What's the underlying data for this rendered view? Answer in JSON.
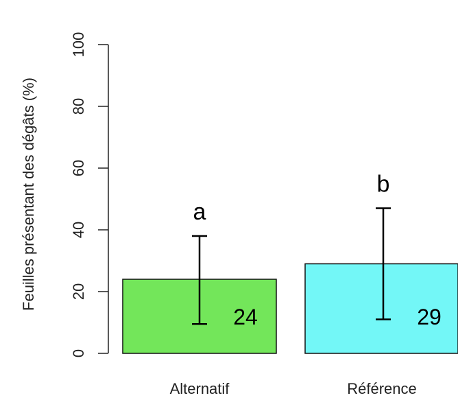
{
  "chart_data": {
    "type": "bar",
    "title": "",
    "xlabel": "",
    "ylabel": "Feuilles présentant des dégâts (%)",
    "ylim": [
      0,
      100
    ],
    "yticks": [
      0,
      20,
      40,
      60,
      80,
      100
    ],
    "ytick_labels": [
      "0",
      "20",
      "40",
      "60",
      "80",
      "100"
    ],
    "grid": false,
    "categories": [
      "Alternatif",
      "Référence"
    ],
    "values": [
      24,
      29
    ],
    "value_labels": [
      "24",
      "29"
    ],
    "error_low": [
      9.5,
      11
    ],
    "error_high": [
      38,
      47
    ],
    "significance_letters": [
      "a",
      "b"
    ],
    "colors": [
      "#73E65A",
      "#73F7F7"
    ]
  }
}
